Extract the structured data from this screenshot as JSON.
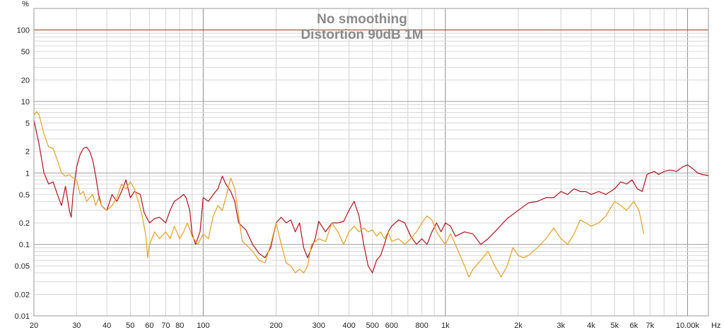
{
  "chart_data": {
    "type": "line",
    "title": "No smoothing",
    "subtitle": "Distortion 90dB 1M",
    "xlabel": "",
    "ylabel": "",
    "x_unit": "Hz",
    "y_unit": "%",
    "x_scale": "log",
    "y_scale": "log",
    "xlim": [
      20,
      12200
    ],
    "ylim": [
      0.01,
      200
    ],
    "grid": true,
    "legend": "none",
    "x_ticks": [
      {
        "value": 20,
        "label": "20"
      },
      {
        "value": 30,
        "label": "30"
      },
      {
        "value": 40,
        "label": "40"
      },
      {
        "value": 50,
        "label": "50"
      },
      {
        "value": 60,
        "label": "60"
      },
      {
        "value": 70,
        "label": "70"
      },
      {
        "value": 80,
        "label": "80"
      },
      {
        "value": 100,
        "label": "100"
      },
      {
        "value": 200,
        "label": "200"
      },
      {
        "value": 300,
        "label": "300"
      },
      {
        "value": 400,
        "label": "400"
      },
      {
        "value": 500,
        "label": "500"
      },
      {
        "value": 600,
        "label": "600"
      },
      {
        "value": 800,
        "label": "800"
      },
      {
        "value": 1000,
        "label": "1k"
      },
      {
        "value": 2000,
        "label": "2k"
      },
      {
        "value": 3000,
        "label": "3k"
      },
      {
        "value": 4000,
        "label": "4k"
      },
      {
        "value": 5000,
        "label": "5k"
      },
      {
        "value": 6000,
        "label": "6k"
      },
      {
        "value": 7000,
        "label": "7k"
      },
      {
        "value": 10000,
        "label": "10.00k"
      }
    ],
    "y_ticks": [
      {
        "value": 100,
        "label": "100"
      },
      {
        "value": 50,
        "label": "50"
      },
      {
        "value": 20,
        "label": "20"
      },
      {
        "value": 10,
        "label": "10"
      },
      {
        "value": 5,
        "label": "5"
      },
      {
        "value": 2,
        "label": "2"
      },
      {
        "value": 1,
        "label": "1"
      },
      {
        "value": 0.5,
        "label": "0.5"
      },
      {
        "value": 0.2,
        "label": "0.2"
      },
      {
        "value": 0.1,
        "label": "0.1"
      },
      {
        "value": 0.05,
        "label": "0.05"
      },
      {
        "value": 0.02,
        "label": "0.02"
      },
      {
        "value": 0.01,
        "label": "0.01"
      }
    ],
    "reference_line": {
      "y": 100,
      "color": "#8b3a1a"
    },
    "series": [
      {
        "color": "#b0141e",
        "points": [
          [
            20,
            5.5
          ],
          [
            21,
            2.5
          ],
          [
            22,
            1.0
          ],
          [
            23,
            0.7
          ],
          [
            24,
            0.75
          ],
          [
            25,
            0.5
          ],
          [
            26,
            0.35
          ],
          [
            27,
            0.65
          ],
          [
            28,
            0.3
          ],
          [
            28.5,
            0.24
          ],
          [
            29,
            0.5
          ],
          [
            30,
            1.2
          ],
          [
            31,
            1.8
          ],
          [
            32,
            2.2
          ],
          [
            33,
            2.3
          ],
          [
            34,
            2.0
          ],
          [
            35,
            1.5
          ],
          [
            36,
            0.9
          ],
          [
            37,
            0.5
          ],
          [
            38,
            0.35
          ],
          [
            39,
            0.32
          ],
          [
            40,
            0.3
          ],
          [
            42,
            0.5
          ],
          [
            44,
            0.4
          ],
          [
            46,
            0.55
          ],
          [
            48,
            0.8
          ],
          [
            50,
            0.45
          ],
          [
            52,
            0.55
          ],
          [
            55,
            0.5
          ],
          [
            57,
            0.28
          ],
          [
            60,
            0.2
          ],
          [
            63,
            0.23
          ],
          [
            66,
            0.24
          ],
          [
            70,
            0.2
          ],
          [
            73,
            0.3
          ],
          [
            76,
            0.4
          ],
          [
            80,
            0.45
          ],
          [
            83,
            0.5
          ],
          [
            85,
            0.45
          ],
          [
            88,
            0.3
          ],
          [
            90,
            0.14
          ],
          [
            93,
            0.1
          ],
          [
            97,
            0.15
          ],
          [
            100,
            0.45
          ],
          [
            105,
            0.4
          ],
          [
            110,
            0.5
          ],
          [
            115,
            0.6
          ],
          [
            120,
            0.9
          ],
          [
            124,
            0.7
          ],
          [
            130,
            0.55
          ],
          [
            135,
            0.4
          ],
          [
            140,
            0.2
          ],
          [
            150,
            0.16
          ],
          [
            160,
            0.1
          ],
          [
            170,
            0.075
          ],
          [
            180,
            0.065
          ],
          [
            190,
            0.09
          ],
          [
            200,
            0.2
          ],
          [
            210,
            0.24
          ],
          [
            220,
            0.2
          ],
          [
            230,
            0.22
          ],
          [
            240,
            0.15
          ],
          [
            250,
            0.2
          ],
          [
            260,
            0.09
          ],
          [
            270,
            0.065
          ],
          [
            290,
            0.12
          ],
          [
            300,
            0.21
          ],
          [
            320,
            0.15
          ],
          [
            340,
            0.2
          ],
          [
            360,
            0.2
          ],
          [
            380,
            0.21
          ],
          [
            400,
            0.3
          ],
          [
            420,
            0.4
          ],
          [
            440,
            0.25
          ],
          [
            460,
            0.1
          ],
          [
            480,
            0.05
          ],
          [
            500,
            0.04
          ],
          [
            520,
            0.06
          ],
          [
            540,
            0.07
          ],
          [
            560,
            0.1
          ],
          [
            580,
            0.15
          ],
          [
            600,
            0.18
          ],
          [
            640,
            0.22
          ],
          [
            680,
            0.2
          ],
          [
            720,
            0.13
          ],
          [
            760,
            0.1
          ],
          [
            800,
            0.12
          ],
          [
            840,
            0.1
          ],
          [
            880,
            0.15
          ],
          [
            920,
            0.2
          ],
          [
            960,
            0.15
          ],
          [
            1000,
            0.2
          ],
          [
            1050,
            0.18
          ],
          [
            1100,
            0.13
          ],
          [
            1200,
            0.15
          ],
          [
            1300,
            0.14
          ],
          [
            1400,
            0.1
          ],
          [
            1500,
            0.12
          ],
          [
            1600,
            0.15
          ],
          [
            1800,
            0.23
          ],
          [
            2000,
            0.3
          ],
          [
            2200,
            0.38
          ],
          [
            2400,
            0.4
          ],
          [
            2600,
            0.45
          ],
          [
            2800,
            0.45
          ],
          [
            3000,
            0.55
          ],
          [
            3200,
            0.5
          ],
          [
            3400,
            0.6
          ],
          [
            3600,
            0.55
          ],
          [
            3800,
            0.55
          ],
          [
            4000,
            0.5
          ],
          [
            4300,
            0.55
          ],
          [
            4600,
            0.5
          ],
          [
            5000,
            0.6
          ],
          [
            5300,
            0.75
          ],
          [
            5600,
            0.7
          ],
          [
            5900,
            0.8
          ],
          [
            6200,
            0.6
          ],
          [
            6500,
            0.55
          ],
          [
            6800,
            0.95
          ],
          [
            7000,
            1.0
          ],
          [
            7300,
            1.05
          ],
          [
            7600,
            0.95
          ],
          [
            8000,
            1.05
          ],
          [
            8500,
            1.1
          ],
          [
            9000,
            1.05
          ],
          [
            9500,
            1.2
          ],
          [
            10000,
            1.3
          ],
          [
            10500,
            1.15
          ],
          [
            11000,
            1.0
          ],
          [
            11500,
            0.95
          ],
          [
            12200,
            0.92
          ]
        ]
      },
      {
        "color": "#e3a126",
        "points": [
          [
            20,
            6.5
          ],
          [
            20.5,
            7.2
          ],
          [
            21,
            6.5
          ],
          [
            22,
            3.5
          ],
          [
            23,
            2.3
          ],
          [
            24,
            2.2
          ],
          [
            25,
            1.5
          ],
          [
            26,
            1.0
          ],
          [
            27,
            0.9
          ],
          [
            28,
            0.95
          ],
          [
            29,
            0.85
          ],
          [
            30,
            0.8
          ],
          [
            31,
            0.5
          ],
          [
            32,
            0.55
          ],
          [
            33,
            0.4
          ],
          [
            34,
            0.45
          ],
          [
            35,
            0.5
          ],
          [
            36,
            0.35
          ],
          [
            37,
            0.45
          ],
          [
            38,
            0.35
          ],
          [
            40,
            0.3
          ],
          [
            42,
            0.35
          ],
          [
            44,
            0.45
          ],
          [
            46,
            0.7
          ],
          [
            48,
            0.6
          ],
          [
            50,
            0.75
          ],
          [
            52,
            0.6
          ],
          [
            54,
            0.4
          ],
          [
            56,
            0.25
          ],
          [
            58,
            0.13
          ],
          [
            59,
            0.065
          ],
          [
            60,
            0.1
          ],
          [
            63,
            0.15
          ],
          [
            66,
            0.12
          ],
          [
            70,
            0.15
          ],
          [
            73,
            0.12
          ],
          [
            76,
            0.18
          ],
          [
            80,
            0.12
          ],
          [
            83,
            0.15
          ],
          [
            86,
            0.2
          ],
          [
            90,
            0.13
          ],
          [
            95,
            0.1
          ],
          [
            100,
            0.14
          ],
          [
            105,
            0.12
          ],
          [
            110,
            0.25
          ],
          [
            115,
            0.35
          ],
          [
            120,
            0.3
          ],
          [
            125,
            0.5
          ],
          [
            130,
            0.85
          ],
          [
            135,
            0.6
          ],
          [
            140,
            0.25
          ],
          [
            145,
            0.11
          ],
          [
            150,
            0.1
          ],
          [
            160,
            0.08
          ],
          [
            170,
            0.06
          ],
          [
            180,
            0.055
          ],
          [
            190,
            0.1
          ],
          [
            200,
            0.2
          ],
          [
            210,
            0.1
          ],
          [
            220,
            0.055
          ],
          [
            230,
            0.05
          ],
          [
            240,
            0.04
          ],
          [
            250,
            0.045
          ],
          [
            260,
            0.04
          ],
          [
            270,
            0.05
          ],
          [
            280,
            0.1
          ],
          [
            300,
            0.12
          ],
          [
            320,
            0.11
          ],
          [
            340,
            0.2
          ],
          [
            360,
            0.15
          ],
          [
            380,
            0.1
          ],
          [
            400,
            0.15
          ],
          [
            420,
            0.18
          ],
          [
            440,
            0.15
          ],
          [
            460,
            0.17
          ],
          [
            480,
            0.15
          ],
          [
            500,
            0.16
          ],
          [
            520,
            0.13
          ],
          [
            540,
            0.15
          ],
          [
            560,
            0.12
          ],
          [
            580,
            0.15
          ],
          [
            600,
            0.11
          ],
          [
            640,
            0.12
          ],
          [
            680,
            0.1
          ],
          [
            720,
            0.12
          ],
          [
            760,
            0.15
          ],
          [
            800,
            0.2
          ],
          [
            840,
            0.25
          ],
          [
            880,
            0.22
          ],
          [
            920,
            0.15
          ],
          [
            960,
            0.12
          ],
          [
            1000,
            0.1
          ],
          [
            1050,
            0.14
          ],
          [
            1100,
            0.1
          ],
          [
            1150,
            0.07
          ],
          [
            1200,
            0.05
          ],
          [
            1250,
            0.035
          ],
          [
            1300,
            0.045
          ],
          [
            1400,
            0.06
          ],
          [
            1500,
            0.08
          ],
          [
            1600,
            0.05
          ],
          [
            1700,
            0.035
          ],
          [
            1800,
            0.05
          ],
          [
            1900,
            0.09
          ],
          [
            2000,
            0.07
          ],
          [
            2100,
            0.065
          ],
          [
            2200,
            0.07
          ],
          [
            2400,
            0.09
          ],
          [
            2600,
            0.12
          ],
          [
            2800,
            0.17
          ],
          [
            3000,
            0.12
          ],
          [
            3200,
            0.1
          ],
          [
            3400,
            0.14
          ],
          [
            3600,
            0.22
          ],
          [
            3800,
            0.2
          ],
          [
            4000,
            0.18
          ],
          [
            4300,
            0.2
          ],
          [
            4600,
            0.25
          ],
          [
            5000,
            0.4
          ],
          [
            5300,
            0.35
          ],
          [
            5600,
            0.3
          ],
          [
            6000,
            0.4
          ],
          [
            6300,
            0.3
          ],
          [
            6600,
            0.14
          ]
        ]
      }
    ]
  }
}
